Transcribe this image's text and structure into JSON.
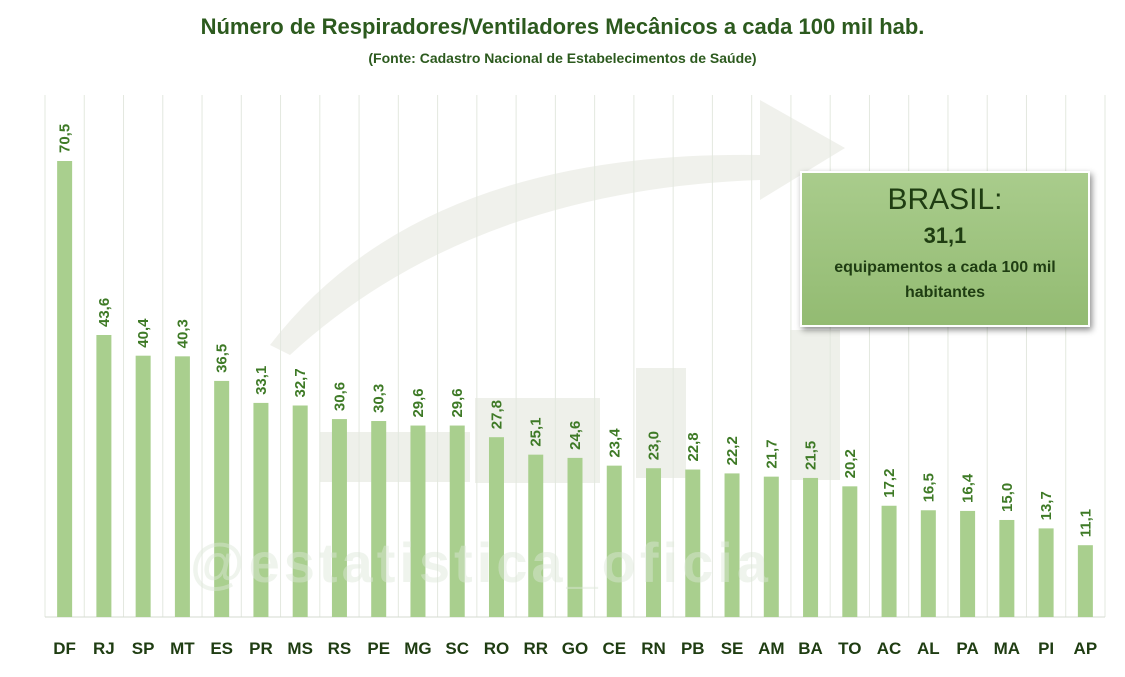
{
  "chart_data": {
    "type": "bar",
    "title": "Número de Respiradores/Ventiladores Mecânicos a cada 100 mil hab.",
    "subtitle": "(Fonte: Cadastro Nacional de Estabelecimentos de Saúde)",
    "categories": [
      "DF",
      "RJ",
      "SP",
      "MT",
      "ES",
      "PR",
      "MS",
      "RS",
      "PE",
      "MG",
      "SC",
      "RO",
      "RR",
      "GO",
      "CE",
      "RN",
      "PB",
      "SE",
      "AM",
      "BA",
      "TO",
      "AC",
      "AL",
      "PA",
      "MA",
      "PI",
      "AP"
    ],
    "values": [
      70.5,
      43.6,
      40.4,
      40.3,
      36.5,
      33.1,
      32.7,
      30.6,
      30.3,
      29.6,
      29.6,
      27.8,
      25.1,
      24.6,
      23.4,
      23.0,
      22.8,
      22.2,
      21.7,
      21.5,
      20.2,
      17.2,
      16.5,
      16.4,
      15.0,
      13.7,
      11.1
    ],
    "value_labels": [
      "70,5",
      "43,6",
      "40,4",
      "40,3",
      "36,5",
      "33,1",
      "32,7",
      "30,6",
      "30,3",
      "29,6",
      "29,6",
      "27,8",
      "25,1",
      "24,6",
      "23,4",
      "23,0",
      "22,8",
      "22,2",
      "21,7",
      "21,5",
      "20,2",
      "17,2",
      "16,5",
      "16,4",
      "15,0",
      "13,7",
      "11,1"
    ],
    "ylim": [
      0,
      75
    ],
    "grid": "vertical",
    "bar_color": "#a9cf8e",
    "label_color": "#3e7a26"
  },
  "callout": {
    "label": "BRASIL:",
    "value": "31,1",
    "text": "equipamentos  a cada 100 mil habitantes"
  },
  "watermark": "@estatistica_oficia",
  "colors": {
    "title": "#2c5a1e",
    "axis_text": "#1f3d12",
    "grid": "#e3e8df"
  }
}
